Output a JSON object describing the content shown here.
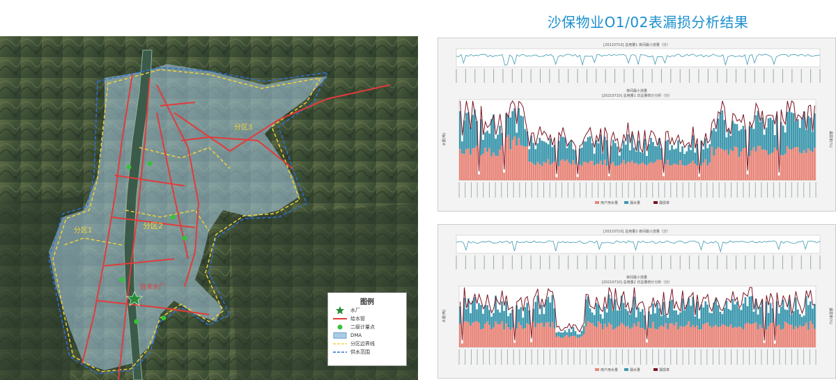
{
  "title": "沙保物业O1/02表漏损分析结果",
  "map": {
    "labels": {
      "zone1": "分区1",
      "zone2": "分区2",
      "zone3": "分区3",
      "plant": "自来水厂"
    },
    "legend": {
      "title": "图例",
      "items": [
        {
          "label": "水厂",
          "icon": "star-icon"
        },
        {
          "label": "给水管",
          "icon": "red-line-icon"
        },
        {
          "label": "二级计量点",
          "icon": "green-dot-icon"
        },
        {
          "label": "DMA",
          "icon": "blue-box-icon"
        },
        {
          "label": "分区边界线",
          "icon": "yellow-dash-icon"
        },
        {
          "label": "供水范围",
          "icon": "blue-dash-icon"
        }
      ]
    }
  },
  "charts": [
    {
      "top_title": "[20210710] 总用量1 夜间最小流量（分）",
      "bottom_title": "[20210710] 总用量1 日总量统计分析（分）",
      "legend_top": "夜间最小流量",
      "legend_bottom": [
        "用户用水量",
        "漏水量",
        "漏损率"
      ],
      "ylabel_left": "水量(吨)",
      "ylabel_right": "漏损率(%)"
    },
    {
      "top_title": "[20210710] 总用量2 夜间最小流量（分）",
      "bottom_title": "[20210710] 总用量2 日总量统计分析（分）",
      "legend_top": "夜间最小流量",
      "legend_bottom": [
        "用户用水量",
        "漏水量",
        "漏损率"
      ],
      "ylabel_left": "水量(吨)",
      "ylabel_right": "漏损率(%)"
    }
  ],
  "colors": {
    "title": "#1b8fcf",
    "user_water": "#e8867a",
    "leak": "#3e98ae",
    "leak_rate": "#7a1320",
    "pipe": "#e23b3b",
    "boundary": "#f2d23a",
    "supply": "#2f6fd6",
    "dma": "#a9cde6"
  }
}
